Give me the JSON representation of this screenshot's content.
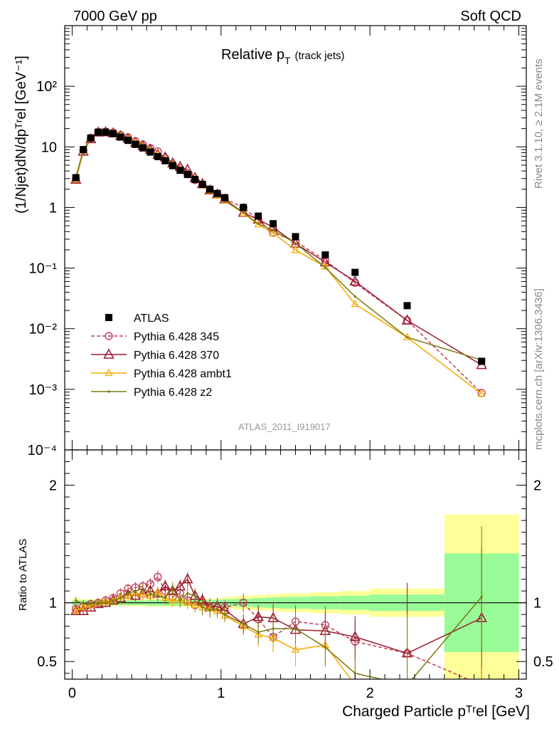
{
  "header": {
    "left": "7000 GeV pp",
    "right": "Soft QCD"
  },
  "side": {
    "rivet": "Rivet 3.1.10, ≥ 2.1M events",
    "mcplots": "mcplots.cern.ch [arXiv:1306.3436]"
  },
  "title": {
    "main": "Relative p",
    "sub": "T",
    "suffix": "(track jets)"
  },
  "ylabel_main": "(1/Njet)dN/dp",
  "ylabel_main_text": "(1/Njet)dN/dpᵀʳel [GeV⁻¹]",
  "ylabel_ratio": "Ratio to ATLAS",
  "xlabel": "Charged Particle pᵀʳel [GeV]",
  "watermark": "ATLAS_2011_I919017",
  "legend": [
    {
      "label": "ATLAS",
      "style": "data"
    },
    {
      "label": "Pythia 6.428 345",
      "style": "circle"
    },
    {
      "label": "Pythia 6.428 370",
      "style": "triangle"
    },
    {
      "label": "Pythia 6.428 ambt1",
      "style": "triangle-small"
    },
    {
      "label": "Pythia 6.428 z2",
      "style": "dot"
    }
  ],
  "colors": {
    "atlas": "#000000",
    "p345": "#c0405a",
    "p370": "#9b1b30",
    "ambt1": "#f5a800",
    "z2": "#7a7a10",
    "band_inner": "#98fb98",
    "band_outer": "#ffff99"
  },
  "chart_data": {
    "type": "line",
    "x_range": [
      -0.05,
      3.05
    ],
    "main_ylim": [
      0.0001,
      1000
    ],
    "main_yscale": "log",
    "ratio_ylim": [
      0.35,
      2.3
    ],
    "x_ticks": [
      "0",
      "1",
      "2",
      "3"
    ],
    "main_y_ticks": [
      "10⁻⁴",
      "10⁻³",
      "10⁻²",
      "10⁻¹",
      "1",
      "10",
      "10²"
    ],
    "ratio_y_ticks": [
      "0.5",
      "1",
      "2"
    ],
    "x": [
      0.025,
      0.075,
      0.125,
      0.175,
      0.225,
      0.275,
      0.325,
      0.375,
      0.425,
      0.475,
      0.525,
      0.575,
      0.625,
      0.675,
      0.725,
      0.775,
      0.825,
      0.875,
      0.925,
      0.975,
      1.025,
      1.15,
      1.25,
      1.35,
      1.5,
      1.7,
      1.9,
      2.25,
      2.75
    ],
    "atlas": [
      3.1,
      9.0,
      14.0,
      17.5,
      17.5,
      16.5,
      14.5,
      12.8,
      11.0,
      9.6,
      8.2,
      6.9,
      5.9,
      4.9,
      4.1,
      3.5,
      2.9,
      2.4,
      2.0,
      1.7,
      1.45,
      1.0,
      0.72,
      0.54,
      0.33,
      0.165,
      0.085,
      0.024,
      0.0029
    ],
    "series": [
      {
        "name": "Pythia 6.428 345",
        "key": "p345",
        "ratio": [
          0.95,
          0.97,
          0.99,
          1.0,
          1.02,
          1.04,
          1.08,
          1.12,
          1.13,
          1.14,
          1.16,
          1.22,
          1.1,
          1.05,
          1.08,
          1.02,
          0.98,
          1.0,
          0.97,
          0.96,
          0.96,
          1.0,
          0.86,
          0.71,
          0.84,
          0.81,
          0.67,
          0.57,
          0.3
        ]
      },
      {
        "name": "Pythia 6.428 370",
        "key": "p370",
        "ratio": [
          0.93,
          0.93,
          0.96,
          0.99,
          1.0,
          1.02,
          1.04,
          1.07,
          1.06,
          1.08,
          1.1,
          1.08,
          1.14,
          1.1,
          1.14,
          1.2,
          1.06,
          1.02,
          0.96,
          0.97,
          0.94,
          0.82,
          0.88,
          0.87,
          0.77,
          0.76,
          0.71,
          0.57,
          0.87
        ]
      },
      {
        "name": "Pythia 6.428 ambt1",
        "key": "ambt1",
        "ratio": [
          0.93,
          0.96,
          0.98,
          1.0,
          1.01,
          1.02,
          1.05,
          1.06,
          1.08,
          1.07,
          1.06,
          1.09,
          1.04,
          1.02,
          1.02,
          1.0,
          0.98,
          0.96,
          0.95,
          0.93,
          0.89,
          0.8,
          0.73,
          0.7,
          0.6,
          0.64,
          0.3,
          0.3,
          0.29
        ]
      },
      {
        "name": "Pythia 6.428 z2",
        "key": "z2",
        "ratio": [
          1.02,
          0.99,
          0.99,
          1.0,
          1.0,
          1.02,
          1.04,
          1.08,
          1.1,
          1.12,
          1.08,
          1.06,
          1.04,
          1.12,
          1.02,
          1.08,
          1.06,
          0.96,
          0.94,
          0.95,
          0.9,
          0.82,
          0.75,
          0.78,
          0.78,
          0.62,
          0.4,
          0.3,
          1.05
        ]
      }
    ],
    "bands": [
      {
        "x0": 0.0,
        "x1": 0.05,
        "inner": 0.02,
        "outer": 0.04
      },
      {
        "x0": 0.05,
        "x1": 0.5,
        "inner": 0.02,
        "outer": 0.03
      },
      {
        "x0": 0.5,
        "x1": 1.0,
        "inner": 0.025,
        "outer": 0.035
      },
      {
        "x0": 1.0,
        "x1": 1.1,
        "inner": 0.03,
        "outer": 0.05
      },
      {
        "x0": 1.1,
        "x1": 1.2,
        "inner": 0.035,
        "outer": 0.06
      },
      {
        "x0": 1.2,
        "x1": 1.3,
        "inner": 0.04,
        "outer": 0.065
      },
      {
        "x0": 1.3,
        "x1": 1.4,
        "inner": 0.045,
        "outer": 0.07
      },
      {
        "x0": 1.4,
        "x1": 1.6,
        "inner": 0.05,
        "outer": 0.08
      },
      {
        "x0": 1.6,
        "x1": 1.8,
        "inner": 0.055,
        "outer": 0.09
      },
      {
        "x0": 1.8,
        "x1": 2.0,
        "inner": 0.06,
        "outer": 0.1
      },
      {
        "x0": 2.0,
        "x1": 2.5,
        "inner": 0.07,
        "outer": 0.12
      },
      {
        "x0": 2.5,
        "x1": 3.0,
        "inner": 0.42,
        "outer": 0.75
      }
    ]
  }
}
